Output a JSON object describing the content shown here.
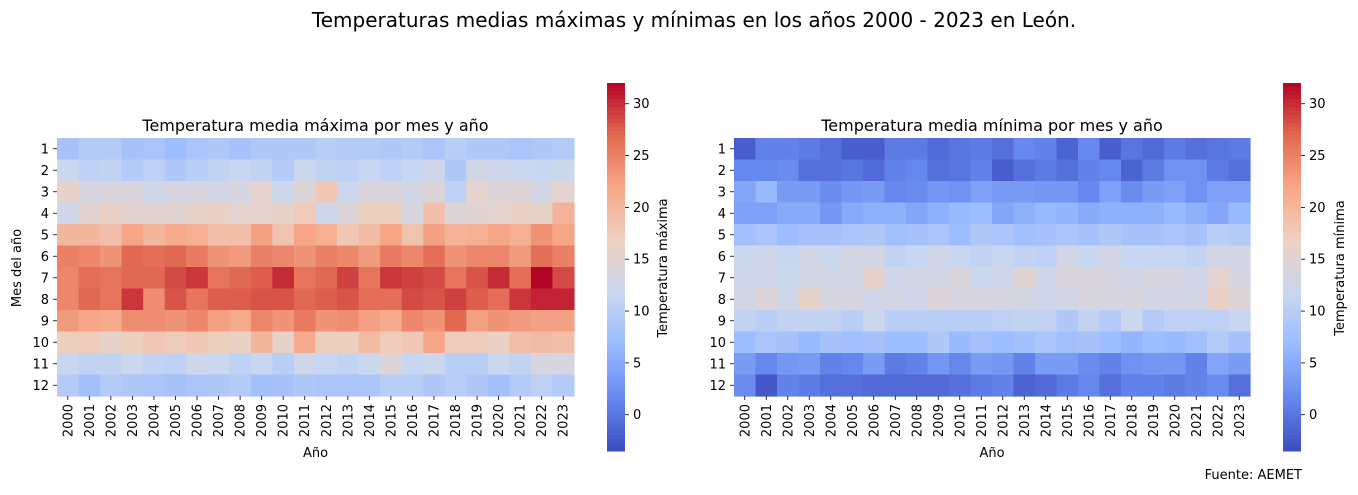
{
  "figure": {
    "suptitle": "Temperaturas medias máximas y mínimas en los años 2000 - 2023 en León.",
    "source": "Fuente: AEMET"
  },
  "colormap": {
    "name": "coolwarm",
    "stops": [
      "#3b4cc0",
      "#6788ee",
      "#9abbff",
      "#c9d7f0",
      "#edd1c2",
      "#f7a889",
      "#e26952",
      "#b40426"
    ]
  },
  "chart_data": [
    {
      "type": "heatmap",
      "title": "Temperatura media máxima por mes y año",
      "xlabel": "Año",
      "ylabel": "Mes del año",
      "colorbar_label": "Temperatura máxima",
      "x": [
        "2000",
        "2001",
        "2002",
        "2003",
        "2004",
        "2005",
        "2006",
        "2007",
        "2008",
        "2009",
        "2010",
        "2011",
        "2012",
        "2013",
        "2014",
        "2015",
        "2016",
        "2017",
        "2018",
        "2019",
        "2020",
        "2021",
        "2022",
        "2023"
      ],
      "y": [
        "1",
        "2",
        "3",
        "4",
        "5",
        "6",
        "7",
        "8",
        "9",
        "10",
        "11",
        "12"
      ],
      "vmin": -3.5,
      "vmax": 32,
      "colorbar_ticks": [
        0,
        5,
        10,
        15,
        20,
        25,
        30
      ],
      "values": [
        [
          8.0,
          9.5,
          9.5,
          8.0,
          8.5,
          7.0,
          8.5,
          9.0,
          8.0,
          9.0,
          9.0,
          9.0,
          10.0,
          9.5,
          9.5,
          9.0,
          9.5,
          8.5,
          10.0,
          9.0,
          9.0,
          8.5,
          9.0,
          9.5
        ],
        [
          12.0,
          10.5,
          11.0,
          9.5,
          10.5,
          9.0,
          10.0,
          11.0,
          11.5,
          11.0,
          9.5,
          12.0,
          11.0,
          10.5,
          11.5,
          10.5,
          11.5,
          12.5,
          9.0,
          13.0,
          12.5,
          12.0,
          11.5,
          12.0
        ],
        [
          16.0,
          13.5,
          14.0,
          14.0,
          12.5,
          13.5,
          13.5,
          13.0,
          13.5,
          15.5,
          12.0,
          14.5,
          18.0,
          12.0,
          14.0,
          14.0,
          13.0,
          14.5,
          10.5,
          15.5,
          14.5,
          14.5,
          13.0,
          15.5
        ],
        [
          12.5,
          15.0,
          16.5,
          15.0,
          15.0,
          15.0,
          16.0,
          16.5,
          15.5,
          15.5,
          16.0,
          17.5,
          12.5,
          14.5,
          17.0,
          17.0,
          13.5,
          19.0,
          14.5,
          15.0,
          15.5,
          16.5,
          16.0,
          20.5
        ],
        [
          20.0,
          20.0,
          19.0,
          22.0,
          20.0,
          21.5,
          21.0,
          19.0,
          19.0,
          22.5,
          18.5,
          22.0,
          21.0,
          18.0,
          19.5,
          22.0,
          18.5,
          22.5,
          20.5,
          21.0,
          22.0,
          21.0,
          23.5,
          22.0
        ],
        [
          25.0,
          24.5,
          23.5,
          27.0,
          26.5,
          27.0,
          25.5,
          23.5,
          23.0,
          25.0,
          24.5,
          23.5,
          25.0,
          24.5,
          23.0,
          25.5,
          24.5,
          26.5,
          23.5,
          24.5,
          24.5,
          23.0,
          26.5,
          25.0
        ],
        [
          24.5,
          26.5,
          26.0,
          27.0,
          27.0,
          28.5,
          29.5,
          26.0,
          27.0,
          27.5,
          30.0,
          26.0,
          27.0,
          29.0,
          26.0,
          29.5,
          29.0,
          28.5,
          26.0,
          28.0,
          30.0,
          26.5,
          32.0,
          28.5
        ],
        [
          24.5,
          27.0,
          26.0,
          29.5,
          24.0,
          28.0,
          26.0,
          27.5,
          27.5,
          28.0,
          28.0,
          27.0,
          27.5,
          28.0,
          26.5,
          26.5,
          28.5,
          28.0,
          29.0,
          27.5,
          26.5,
          29.5,
          30.5,
          30.5
        ],
        [
          23.0,
          22.0,
          21.5,
          24.0,
          24.0,
          23.5,
          24.5,
          22.5,
          21.5,
          24.5,
          23.5,
          25.5,
          23.5,
          24.0,
          22.5,
          21.5,
          24.5,
          23.5,
          27.0,
          22.5,
          23.5,
          23.0,
          22.5,
          22.5
        ],
        [
          17.0,
          17.5,
          16.0,
          17.0,
          18.0,
          17.5,
          18.0,
          17.0,
          16.5,
          20.0,
          16.0,
          21.5,
          17.0,
          17.0,
          19.5,
          17.5,
          18.0,
          22.0,
          17.5,
          17.5,
          16.5,
          19.0,
          19.5,
          19.0
        ],
        [
          11.5,
          11.0,
          11.0,
          12.0,
          11.0,
          10.5,
          12.5,
          12.0,
          10.5,
          11.5,
          10.0,
          12.5,
          11.5,
          11.0,
          12.0,
          14.5,
          11.5,
          12.0,
          10.0,
          10.0,
          12.0,
          11.0,
          13.5,
          13.5
        ],
        [
          9.5,
          7.5,
          9.5,
          9.0,
          8.5,
          8.0,
          8.5,
          9.0,
          9.5,
          7.5,
          8.0,
          9.0,
          8.5,
          8.5,
          8.5,
          10.0,
          10.0,
          9.0,
          10.0,
          9.0,
          7.5,
          9.5,
          10.5,
          9.5
        ]
      ]
    },
    {
      "type": "heatmap",
      "title": "Temperatura media mínima por mes y año",
      "xlabel": "Año",
      "ylabel": "",
      "colorbar_label": "Temperatura mínima",
      "x": [
        "2000",
        "2001",
        "2002",
        "2003",
        "2004",
        "2005",
        "2006",
        "2007",
        "2008",
        "2009",
        "2010",
        "2011",
        "2012",
        "2013",
        "2014",
        "2015",
        "2016",
        "2017",
        "2018",
        "2019",
        "2020",
        "2021",
        "2022",
        "2023"
      ],
      "y": [
        "1",
        "2",
        "3",
        "4",
        "5",
        "6",
        "7",
        "8",
        "9",
        "10",
        "11",
        "12"
      ],
      "vmin": -3.5,
      "vmax": 32,
      "colorbar_ticks": [
        0,
        5,
        10,
        15,
        20,
        25,
        30
      ],
      "values": [
        [
          -2.0,
          1.0,
          1.0,
          0.5,
          -0.5,
          -2.0,
          -2.0,
          0.5,
          0.5,
          -1.0,
          0.0,
          0.5,
          -0.5,
          1.5,
          1.0,
          -1.5,
          1.5,
          -2.0,
          0.0,
          -1.0,
          0.5,
          -0.5,
          0.0,
          0.5
        ],
        [
          1.5,
          1.5,
          2.0,
          -0.5,
          -0.5,
          0.0,
          -1.0,
          1.0,
          1.5,
          -0.5,
          0.0,
          1.0,
          -2.0,
          -0.5,
          0.5,
          -0.5,
          1.0,
          1.5,
          -1.5,
          0.5,
          2.5,
          2.5,
          0.5,
          -0.5
        ],
        [
          4.5,
          6.5,
          3.5,
          3.5,
          2.0,
          3.0,
          3.5,
          1.5,
          2.0,
          3.0,
          2.5,
          4.0,
          3.5,
          3.5,
          3.0,
          3.0,
          1.5,
          4.0,
          2.0,
          3.5,
          4.0,
          2.5,
          4.0,
          4.0
        ],
        [
          4.0,
          4.0,
          5.0,
          5.0,
          3.0,
          5.0,
          5.5,
          5.5,
          4.5,
          5.5,
          6.5,
          7.0,
          4.5,
          5.5,
          6.5,
          6.0,
          5.0,
          5.5,
          5.5,
          5.5,
          6.5,
          5.5,
          4.5,
          6.5
        ],
        [
          7.5,
          8.5,
          7.0,
          8.0,
          8.0,
          8.5,
          9.0,
          7.5,
          8.0,
          8.5,
          7.0,
          9.0,
          8.5,
          7.5,
          8.0,
          8.5,
          8.0,
          9.0,
          8.0,
          8.0,
          8.5,
          8.0,
          10.0,
          9.5
        ],
        [
          12.0,
          12.5,
          11.5,
          13.0,
          12.0,
          13.0,
          13.0,
          11.0,
          11.5,
          12.5,
          11.5,
          11.0,
          11.5,
          11.0,
          10.5,
          13.0,
          11.5,
          13.0,
          11.5,
          11.5,
          11.5,
          11.0,
          13.0,
          13.0
        ],
        [
          12.5,
          12.5,
          12.0,
          13.0,
          13.0,
          13.0,
          16.0,
          12.5,
          13.0,
          13.0,
          14.0,
          12.0,
          12.5,
          15.0,
          12.5,
          14.0,
          14.0,
          13.5,
          13.0,
          13.5,
          13.5,
          12.5,
          15.5,
          13.5
        ],
        [
          13.0,
          14.5,
          12.5,
          16.0,
          13.5,
          13.5,
          12.5,
          13.0,
          12.5,
          14.5,
          13.5,
          13.5,
          13.5,
          13.0,
          12.5,
          13.0,
          13.5,
          13.5,
          13.5,
          13.0,
          13.0,
          13.0,
          16.5,
          14.5
        ],
        [
          11.0,
          10.0,
          11.0,
          11.0,
          11.0,
          10.0,
          12.0,
          10.0,
          10.0,
          10.0,
          10.0,
          10.0,
          10.5,
          11.0,
          11.0,
          9.0,
          11.0,
          9.5,
          12.0,
          9.5,
          10.5,
          10.5,
          10.5,
          11.5
        ],
        [
          7.0,
          8.5,
          8.0,
          6.5,
          8.0,
          7.5,
          8.0,
          7.0,
          7.0,
          9.0,
          6.5,
          8.0,
          7.0,
          7.5,
          8.5,
          7.5,
          8.0,
          7.0,
          6.0,
          7.0,
          6.5,
          7.5,
          9.5,
          8.0
        ],
        [
          3.5,
          1.5,
          3.0,
          3.5,
          1.0,
          1.5,
          3.5,
          0.5,
          1.0,
          3.0,
          1.5,
          3.5,
          3.0,
          1.0,
          3.5,
          3.5,
          2.0,
          1.0,
          2.5,
          3.0,
          3.0,
          1.0,
          4.5,
          3.5
        ],
        [
          2.0,
          -2.5,
          1.0,
          0.5,
          -0.5,
          -0.5,
          -1.0,
          -1.0,
          -1.0,
          -1.0,
          -0.5,
          0.5,
          1.0,
          -1.5,
          -1.0,
          0.5,
          1.5,
          -0.5,
          1.0,
          1.0,
          0.5,
          1.0,
          2.0,
          -0.5
        ]
      ]
    }
  ]
}
